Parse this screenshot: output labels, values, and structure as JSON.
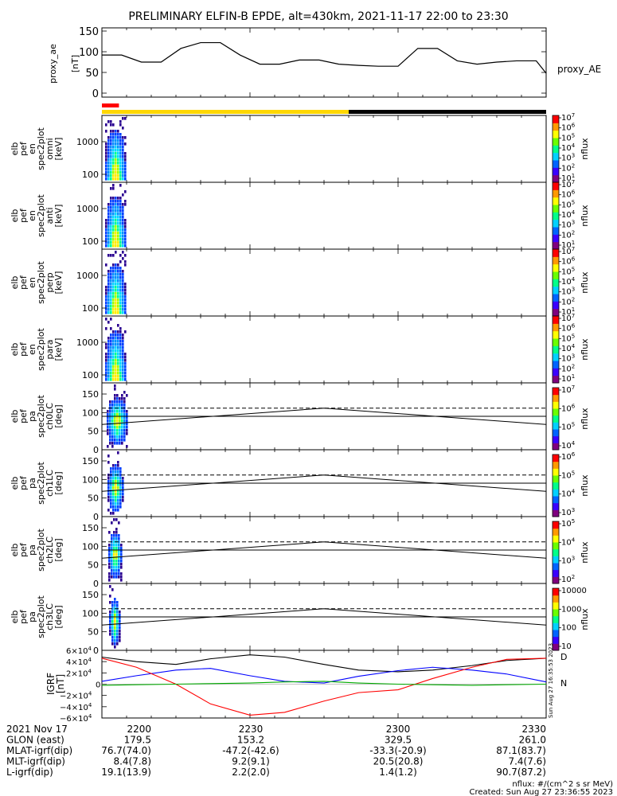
{
  "title": "PRELIMINARY ELFIN-B EPDE, alt=430km, 2021-11-17 22:00 to 23:30",
  "colors": {
    "ae_line": "#000000",
    "bar_red": "#ff0000",
    "bar_yellow": "#ffd700",
    "bar_black": "#000000",
    "grf_black": "#000000",
    "grf_blue": "#0000ff",
    "grf_red": "#ff0000",
    "grf_green": "#00aa00"
  },
  "chart_data": [
    {
      "type": "line",
      "id": "proxy_ae",
      "ylabel_lines": [
        "proxy_ae",
        "[nT]"
      ],
      "legend": "proxy_AE",
      "yticks": [
        "150",
        "100",
        "50",
        "0"
      ],
      "ylim": [
        0,
        150
      ],
      "x": [
        "22:00",
        "22:04",
        "22:08",
        "22:12",
        "22:16",
        "22:20",
        "22:24",
        "22:28",
        "22:32",
        "22:36",
        "22:40",
        "22:44",
        "22:48",
        "22:52",
        "22:56",
        "23:00",
        "23:04",
        "23:08",
        "23:12",
        "23:16",
        "23:20",
        "23:24",
        "23:28",
        "23:30"
      ],
      "values": [
        92,
        92,
        75,
        75,
        108,
        122,
        122,
        92,
        70,
        70,
        80,
        80,
        70,
        67,
        65,
        65,
        108,
        108,
        78,
        70,
        75,
        78,
        78,
        48
      ]
    },
    {
      "type": "bar",
      "id": "region_bar",
      "segments": [
        {
          "start": "22:00",
          "end": "22:02",
          "color": "bar_red",
          "row": "upper"
        },
        {
          "start": "22:00",
          "end": "22:50",
          "color": "bar_yellow",
          "row": "lower"
        },
        {
          "start": "22:50",
          "end": "23:30",
          "color": "bar_black",
          "row": "lower"
        }
      ]
    },
    {
      "type": "heatmap",
      "id": "omni",
      "ylabel_lines": [
        "elb",
        "pef",
        "en",
        "spec2plot",
        "omni",
        "[keV]"
      ],
      "yticks": [
        "1000",
        "100"
      ],
      "zlabel": "nflux",
      "zticks": [
        "10^7",
        "10^6",
        "10^5",
        "10^4",
        "10^3",
        "10^2",
        "10^1"
      ],
      "active_x": [
        "22:00",
        "22:02"
      ]
    },
    {
      "type": "heatmap",
      "id": "anti",
      "ylabel_lines": [
        "elb",
        "pef",
        "en",
        "spec2plot",
        "anti",
        "[keV]"
      ],
      "yticks": [
        "1000",
        "100"
      ],
      "zlabel": "nflux",
      "zticks": [
        "10^7",
        "10^6",
        "10^5",
        "10^4",
        "10^3",
        "10^2",
        "10^1"
      ],
      "active_x": [
        "22:00",
        "22:02"
      ]
    },
    {
      "type": "heatmap",
      "id": "perp",
      "ylabel_lines": [
        "elb",
        "pef",
        "en",
        "spec2plot",
        "perp",
        "[keV]"
      ],
      "yticks": [
        "1000",
        "100"
      ],
      "zlabel": "nflux",
      "zticks": [
        "10^7",
        "10^6",
        "10^5",
        "10^4",
        "10^3",
        "10^2",
        "10^1"
      ],
      "active_x": [
        "22:00",
        "22:02"
      ]
    },
    {
      "type": "heatmap",
      "id": "para",
      "ylabel_lines": [
        "elb",
        "pef",
        "en",
        "spec2plot",
        "para",
        "[keV]"
      ],
      "yticks": [
        "1000",
        "100"
      ],
      "zlabel": "nflux",
      "zticks": [
        "10^7",
        "10^6",
        "10^5",
        "10^4",
        "10^3",
        "10^2",
        "10^1"
      ],
      "active_x": [
        "22:00",
        "22:02"
      ]
    },
    {
      "type": "heatmap",
      "id": "ch0LC",
      "ylabel_lines": [
        "elb",
        "pef",
        "pa",
        "spec2plot",
        "ch0LC",
        "[deg]"
      ],
      "yticks": [
        "150",
        "100",
        "50",
        "0"
      ],
      "ylim": [
        0,
        180
      ],
      "zlabel": "nflux",
      "zticks": [
        "10^7",
        "10^6",
        "10^5",
        "10^4"
      ],
      "lines": {
        "x": [
          "22:00",
          "22:45",
          "23:30"
        ],
        "solid_low": [
          68,
          112,
          68
        ],
        "solid_flat": 90,
        "dashed_flat": 112
      }
    },
    {
      "type": "heatmap",
      "id": "ch1LC",
      "ylabel_lines": [
        "elb",
        "pef",
        "pa",
        "spec2plot",
        "ch1LC",
        "[deg]"
      ],
      "yticks": [
        "150",
        "100",
        "50",
        "0"
      ],
      "ylim": [
        0,
        180
      ],
      "zlabel": "nflux",
      "zticks": [
        "10^6",
        "10^5",
        "10^4",
        "10^3"
      ],
      "lines": {
        "x": [
          "22:00",
          "22:45",
          "23:30"
        ],
        "solid_low": [
          68,
          112,
          68
        ],
        "solid_flat": 90,
        "dashed_flat": 112
      }
    },
    {
      "type": "heatmap",
      "id": "ch2LC",
      "ylabel_lines": [
        "elb",
        "pef",
        "pa",
        "spec2plot",
        "ch2LC",
        "[deg]"
      ],
      "yticks": [
        "150",
        "100",
        "50",
        "0"
      ],
      "ylim": [
        0,
        180
      ],
      "zlabel": "nflux",
      "zticks": [
        "10^5",
        "10^4",
        "10^3",
        "10^2"
      ],
      "lines": {
        "x": [
          "22:00",
          "22:45",
          "23:30"
        ],
        "solid_low": [
          68,
          112,
          68
        ],
        "solid_flat": 90,
        "dashed_flat": 112
      }
    },
    {
      "type": "heatmap",
      "id": "ch3LC",
      "ylabel_lines": [
        "elb",
        "pef",
        "pa",
        "spec2plot",
        "ch3LC",
        "[deg]"
      ],
      "yticks": [
        "150",
        "100",
        "50",
        "0"
      ],
      "ylim": [
        0,
        180
      ],
      "zlabel": "nflux",
      "zticks": [
        "10000",
        "1000",
        "100",
        "10"
      ],
      "lines": {
        "x": [
          "22:00",
          "22:45",
          "23:30"
        ],
        "solid_low": [
          68,
          112,
          68
        ],
        "solid_flat": 90,
        "dashed_flat": 112
      }
    },
    {
      "type": "line",
      "id": "igrf",
      "ylabel_lines": [
        "IGRF",
        "[nT]"
      ],
      "yticks": [
        "6×10^4",
        "4×10^4",
        "2×10^4",
        "0",
        "−2×10^4",
        "−4×10^4",
        "−6×10^4"
      ],
      "ylim": [
        -60000,
        60000
      ],
      "side_labels": [
        "D",
        "N"
      ],
      "side_note": "Sun Aug 27 16:35:53 2023",
      "x": [
        "22:00",
        "22:07",
        "22:15",
        "22:22",
        "22:30",
        "22:37",
        "22:45",
        "22:52",
        "23:00",
        "23:07",
        "23:15",
        "23:22",
        "23:30"
      ],
      "series": [
        {
          "color": "grf_black",
          "values": [
            48000,
            40000,
            35000,
            45000,
            52000,
            48000,
            35000,
            25000,
            22000,
            25000,
            33000,
            42000,
            46000
          ]
        },
        {
          "color": "grf_blue",
          "values": [
            5000,
            15000,
            25000,
            28000,
            15000,
            5000,
            2000,
            14000,
            24000,
            30000,
            25000,
            18000,
            4000
          ]
        },
        {
          "color": "grf_red",
          "values": [
            46000,
            30000,
            0,
            -35000,
            -55000,
            -50000,
            -30000,
            -15000,
            -10000,
            10000,
            30000,
            44000,
            46000
          ]
        },
        {
          "color": "grf_green",
          "values": [
            -2000,
            -1000,
            0,
            1000,
            2000,
            4000,
            5000,
            2000,
            0,
            -1000,
            -2000,
            -1000,
            0
          ]
        }
      ]
    }
  ],
  "footer": {
    "rows": [
      {
        "label": "2021 Nov 17",
        "values": [
          "2200",
          "2230",
          "2300",
          "2330"
        ]
      },
      {
        "label": "GLON (east)",
        "values": [
          "179.5",
          "153.2",
          "329.5",
          "261.0"
        ]
      },
      {
        "label": "MLAT-igrf(dip)",
        "values": [
          "76.7(74.0)",
          "-47.2(-42.6)",
          "-33.3(-20.9)",
          "87.1(83.7)"
        ]
      },
      {
        "label": "MLT-igrf(dip)",
        "values": [
          "8.4(7.8)",
          "9.2(9.1)",
          "20.5(20.8)",
          "7.4(7.6)"
        ]
      },
      {
        "label": "L-igrf(dip)",
        "values": [
          "19.1(13.9)",
          "2.2(2.0)",
          "1.4(1.2)",
          "90.7(87.2)"
        ]
      }
    ],
    "unit_note": "nflux: #/(cm^2 s sr MeV)",
    "created": "Created: Sun Aug 27 23:36:55 2023"
  }
}
